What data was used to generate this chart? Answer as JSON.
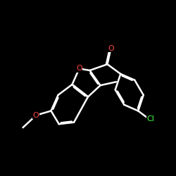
{
  "background_color": "#000000",
  "bond_color": "#ffffff",
  "atom_colors": {
    "O": "#ff4444",
    "Cl": "#44ff44",
    "C": "#ffffff"
  },
  "bond_width": 1.8,
  "figsize": [
    2.5,
    2.5
  ],
  "dpi": 100
}
